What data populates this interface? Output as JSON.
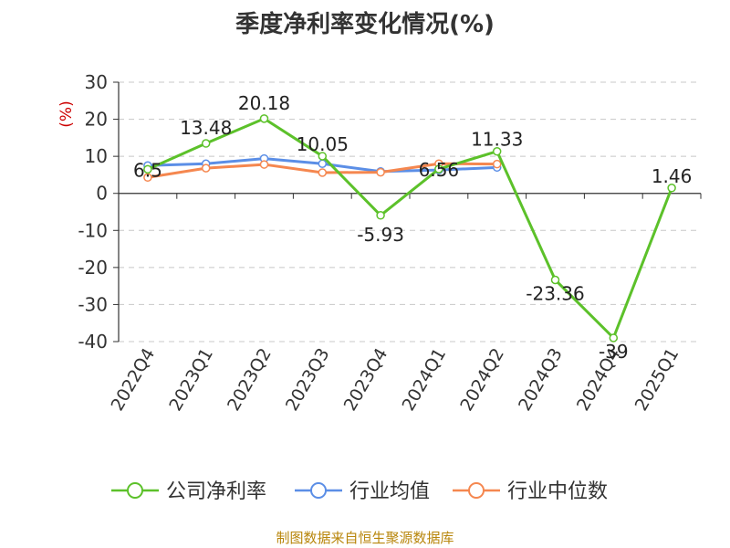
{
  "chart_data": {
    "type": "line",
    "title": "季度净利率变化情况(%)",
    "ylabel": "(%)",
    "xlabel": "",
    "categories": [
      "2022Q4",
      "2023Q1",
      "2023Q2",
      "2023Q3",
      "2023Q4",
      "2024Q1",
      "2024Q2",
      "2024Q3",
      "2024Q4",
      "2025Q1"
    ],
    "ylim": [
      -40,
      30
    ],
    "yticks": [
      30,
      20,
      10,
      0,
      -10,
      -20,
      -30,
      -40
    ],
    "grid": true,
    "legend_position": "bottom",
    "series": [
      {
        "name": "公司净利率",
        "color": "#5cc12a",
        "values": [
          6.5,
          13.48,
          20.18,
          10.05,
          -5.93,
          6.56,
          11.33,
          -23.36,
          -39,
          1.46
        ],
        "labels": [
          "6.5",
          "13.48",
          "20.18",
          "10.05",
          "-5.93",
          "6.56",
          "11.33",
          "-23.36",
          "-39",
          "1.46"
        ]
      },
      {
        "name": "行业均值",
        "color": "#5b8ee6",
        "values": [
          7.5,
          8.0,
          9.4,
          8.0,
          5.9,
          6.3,
          7.0,
          null,
          null,
          null
        ]
      },
      {
        "name": "行业中位数",
        "color": "#f5874f",
        "values": [
          4.3,
          6.8,
          7.8,
          5.6,
          5.7,
          8.0,
          7.9,
          null,
          null,
          null
        ]
      }
    ]
  },
  "source": "制图数据来自恒生聚源数据库"
}
